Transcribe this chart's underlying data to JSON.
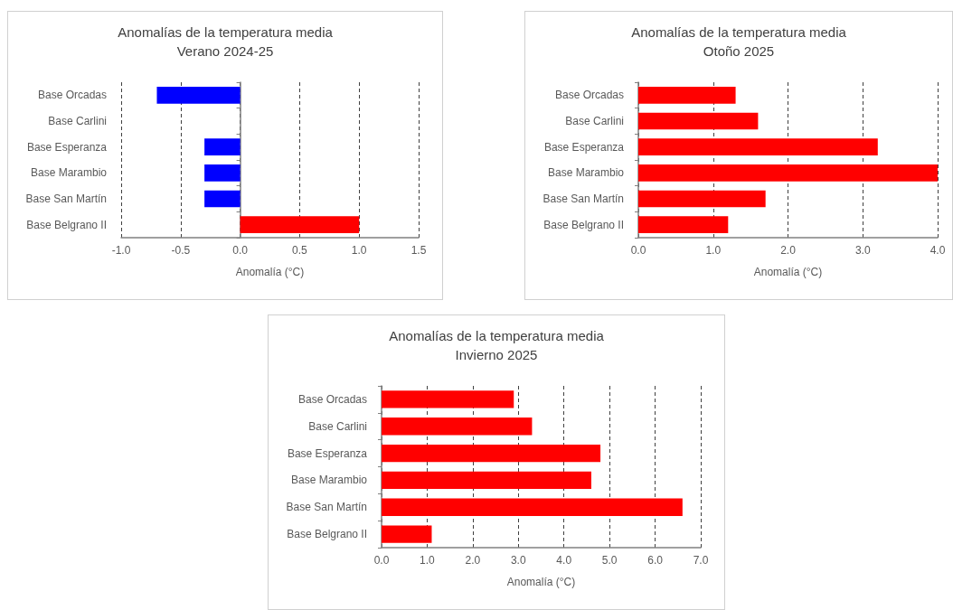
{
  "chart_data": [
    {
      "type": "bar",
      "orientation": "horizontal",
      "title": "Anomalías de la temperatura media",
      "subtitle": "Verano 2024-25",
      "xlabel": "Anomalía (°C)",
      "categories": [
        "Base Orcadas",
        "Base Carlini",
        "Base Esperanza",
        "Base Marambio",
        "Base San Martín",
        "Base Belgrano II"
      ],
      "values": [
        -0.7,
        null,
        -0.3,
        -0.3,
        -0.3,
        1.0
      ],
      "colors": [
        "#0000ff",
        "#0000ff",
        "#0000ff",
        "#0000ff",
        "#0000ff",
        "#ff0000"
      ],
      "xlim": [
        -1.0,
        1.5
      ],
      "xticks": [
        {
          "value": -1,
          "label": "-1.0"
        },
        {
          "value": -0.5,
          "label": "-0.5"
        },
        {
          "value": 0,
          "label": "0.0"
        },
        {
          "value": 0.5,
          "label": "0.5"
        },
        {
          "value": 1,
          "label": "1.0"
        },
        {
          "value": 1.5,
          "label": "1.5"
        }
      ],
      "grid": "x",
      "line_style": "dashed"
    },
    {
      "type": "bar",
      "orientation": "horizontal",
      "title": "Anomalías de la temperatura media",
      "subtitle": "Otoño 2025",
      "xlabel": "Anomalía (°C)",
      "categories": [
        "Base Orcadas",
        "Base Carlini",
        "Base Esperanza",
        "Base Marambio",
        "Base San Martín",
        "Base Belgrano II"
      ],
      "values": [
        1.3,
        1.6,
        3.2,
        4.0,
        1.7,
        1.2
      ],
      "color": "#ff0000",
      "xlim": [
        0,
        4
      ],
      "xticks": [
        {
          "value": 0,
          "label": "0.0"
        },
        {
          "value": 1,
          "label": "1.0"
        },
        {
          "value": 2,
          "label": "2.0"
        },
        {
          "value": 3,
          "label": "3.0"
        },
        {
          "value": 4,
          "label": "4.0"
        }
      ],
      "grid": "x",
      "line_style": "dashed"
    },
    {
      "type": "bar",
      "orientation": "horizontal",
      "title": "Anomalías de la temperatura media",
      "subtitle": "Invierno 2025",
      "xlabel": "Anomalía (°C)",
      "categories": [
        "Base Orcadas",
        "Base Carlini",
        "Base Esperanza",
        "Base Marambio",
        "Base San Martín",
        "Base Belgrano II"
      ],
      "values": [
        2.9,
        3.3,
        4.8,
        4.6,
        6.6,
        1.1
      ],
      "color": "#ff0000",
      "xlim": [
        0,
        7
      ],
      "xticks": [
        {
          "value": 0,
          "label": "0.0"
        },
        {
          "value": 1,
          "label": "1.0"
        },
        {
          "value": 2,
          "label": "2.0"
        },
        {
          "value": 3,
          "label": "3.0"
        },
        {
          "value": 4,
          "label": "4.0"
        },
        {
          "value": 5,
          "label": "5.0"
        },
        {
          "value": 6,
          "label": "6.0"
        },
        {
          "value": 7,
          "label": "7.0"
        }
      ],
      "grid": "x",
      "line_style": "dashed"
    }
  ]
}
